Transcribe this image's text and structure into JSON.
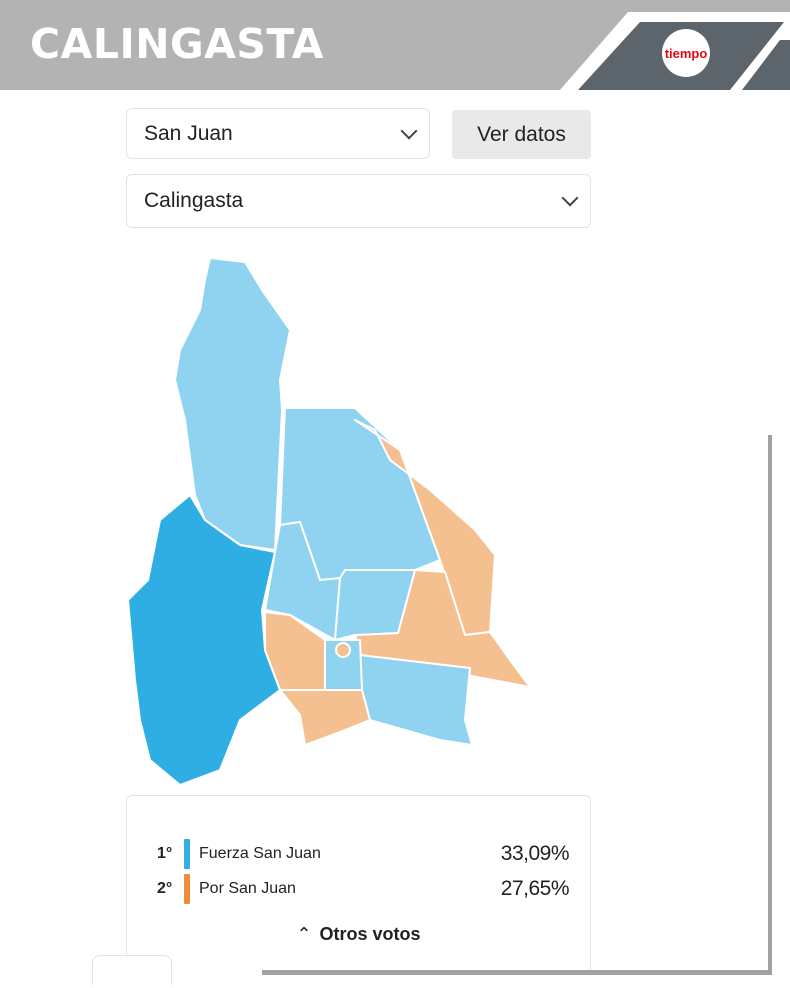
{
  "header": {
    "title": "CALINGASTA",
    "logo_text": "tiempo",
    "brand_color": "#e30613"
  },
  "filters": {
    "province": "San Juan",
    "department": "Calingasta",
    "view_button": "Ver datos"
  },
  "map": {
    "colors": {
      "Fuerza San Juan": "#8fd3f0",
      "Fuerza San Juan selected": "#2eaee3",
      "Por San Juan": "#f5c08f"
    }
  },
  "results": {
    "items": [
      {
        "rank": "1°",
        "name": "Fuerza San Juan",
        "percent": "33,09%",
        "color": "#35aee2"
      },
      {
        "rank": "2°",
        "name": "Por San Juan",
        "percent": "27,65%",
        "color": "#ef8c3a"
      }
    ],
    "others_label": "Otros votos"
  }
}
